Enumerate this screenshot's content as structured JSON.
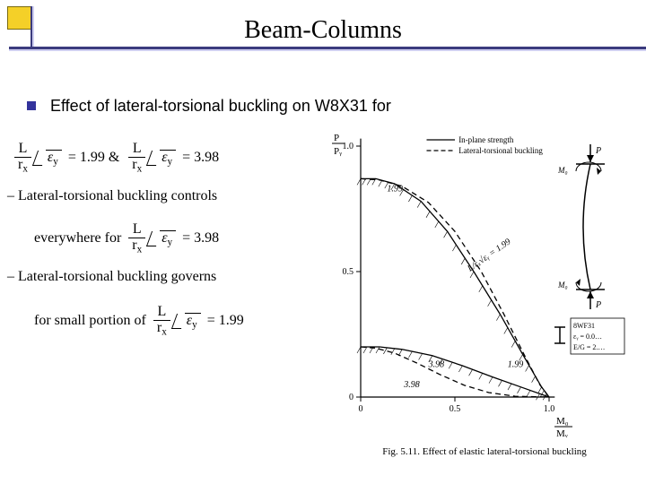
{
  "title": "Beam-Columns",
  "bullet": "Effect of lateral-torsional buckling on W8X31 for",
  "equations": {
    "line1": {
      "frac_n": "L",
      "frac_d": "r",
      "sub": "x",
      "rad": "ε",
      "radsub": "y",
      "eq1": "= 1.99  &",
      "eq2": "= 3.98"
    },
    "line2a": "– Lateral-torsional buckling controls",
    "line2b": {
      "lead": "everywhere for",
      "frac_n": "L",
      "frac_d": "r",
      "sub": "x",
      "rad": "ε",
      "radsub": "y",
      "eq": "= 3.98"
    },
    "line3a": "– Lateral-torsional buckling governs",
    "line3b": {
      "lead": "for small portion of",
      "frac_n": "L",
      "frac_d": "r",
      "sub": "x",
      "rad": "ε",
      "radsub": "y",
      "eq": "= 1.99"
    }
  },
  "chart": {
    "type": "line",
    "xlim": [
      0,
      1
    ],
    "ylim": [
      0,
      1
    ],
    "xticks": [
      "0",
      "0.5",
      "1.0"
    ],
    "yticks": [
      "0",
      "0.5",
      "1.0"
    ],
    "xlabel": "M₀ / Mᵧ",
    "ylabel": "P / Pᵧ",
    "legend": [
      {
        "label": "In-plane strength",
        "dash": false
      },
      {
        "label": "Lateral-torsional buckling",
        "dash": true
      }
    ],
    "curve_labels": [
      {
        "text": "1.99",
        "x": 0.14,
        "y": 0.82
      },
      {
        "text": "1.99",
        "x": 0.78,
        "y": 0.12,
        "dash": true
      },
      {
        "text": "L/rₓ√εᵧ = 1.99",
        "x": 0.58,
        "y": 0.5,
        "rot": -35
      },
      {
        "text": "3.98",
        "x": 0.36,
        "y": 0.12
      },
      {
        "text": "3.98",
        "x": 0.23,
        "y": 0.04,
        "dash": true
      }
    ],
    "series": [
      {
        "name": "inplane_199",
        "dash": false,
        "pts": [
          [
            0,
            0.87
          ],
          [
            0.08,
            0.87
          ],
          [
            0.18,
            0.85
          ],
          [
            0.32,
            0.78
          ],
          [
            0.46,
            0.66
          ],
          [
            0.6,
            0.5
          ],
          [
            0.74,
            0.33
          ],
          [
            0.86,
            0.17
          ],
          [
            0.96,
            0.04
          ],
          [
            1.0,
            0
          ]
        ]
      },
      {
        "name": "ltb_199",
        "dash": true,
        "pts": [
          [
            0,
            0.87
          ],
          [
            0.1,
            0.865
          ],
          [
            0.22,
            0.84
          ],
          [
            0.36,
            0.775
          ],
          [
            0.5,
            0.66
          ],
          [
            0.64,
            0.5
          ],
          [
            0.76,
            0.33
          ],
          [
            0.86,
            0.18
          ],
          [
            0.95,
            0.05
          ],
          [
            1.0,
            0
          ]
        ]
      },
      {
        "name": "inplane_398",
        "dash": false,
        "pts": [
          [
            0,
            0.2
          ],
          [
            0.1,
            0.2
          ],
          [
            0.22,
            0.19
          ],
          [
            0.38,
            0.165
          ],
          [
            0.54,
            0.125
          ],
          [
            0.7,
            0.08
          ],
          [
            0.85,
            0.04
          ],
          [
            1.0,
            0
          ]
        ]
      },
      {
        "name": "ltb_398",
        "dash": true,
        "pts": [
          [
            0,
            0.2
          ],
          [
            0.08,
            0.195
          ],
          [
            0.18,
            0.175
          ],
          [
            0.3,
            0.135
          ],
          [
            0.42,
            0.09
          ],
          [
            0.55,
            0.047
          ],
          [
            0.68,
            0.018
          ],
          [
            0.82,
            0.003
          ],
          [
            1.0,
            0
          ]
        ]
      }
    ],
    "hatch": [
      {
        "below": "inplane_199"
      },
      {
        "below": "inplane_398"
      }
    ],
    "diagram": {
      "labels": [
        "P",
        "M₀",
        "M₀",
        "P"
      ],
      "box": [
        "8WF31",
        "εᵧ = 0.0…",
        "E/G = 2.…"
      ]
    },
    "caption": "Fig. 5.11.  Effect of elastic lateral-torsional buckling"
  },
  "colors": {
    "accent": "#33339c",
    "corner": "#f4d028",
    "rule": "#3b3b7e"
  }
}
